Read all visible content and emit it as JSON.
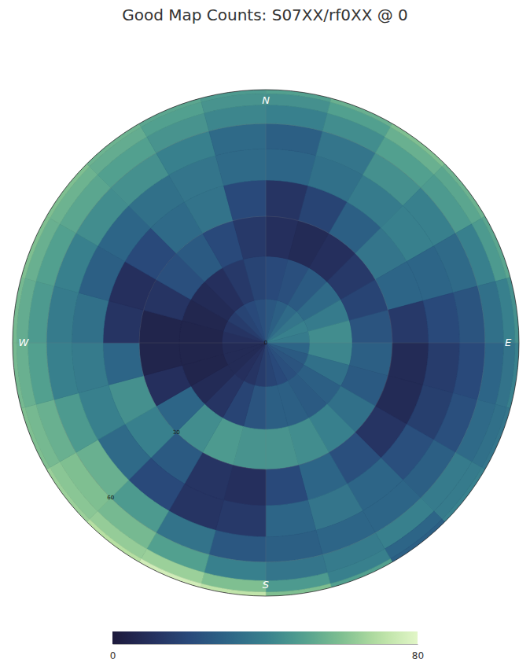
{
  "chart_data": {
    "type": "heatmap",
    "title": "Good Map Counts: S07XX/rf0XX @ 0",
    "zenith_bins": [
      0,
      10,
      20,
      30,
      40,
      50,
      60,
      70,
      80,
      90
    ],
    "azimuth_bins": [
      0,
      15,
      30,
      45,
      60,
      75,
      90,
      105,
      120,
      135,
      150,
      165,
      180,
      195,
      210,
      225,
      240,
      255,
      270,
      285,
      300,
      315,
      330,
      345,
      360
    ],
    "values": [
      [
        25,
        28,
        32,
        36,
        40,
        38,
        30,
        26,
        24,
        22,
        20,
        18,
        15,
        12,
        10,
        8,
        8,
        8,
        10,
        12,
        15,
        18,
        20,
        22
      ],
      [
        20,
        22,
        26,
        32,
        38,
        44,
        42,
        34,
        28,
        26,
        28,
        28,
        24,
        18,
        12,
        8,
        5,
        5,
        5,
        6,
        8,
        10,
        14,
        18
      ],
      [
        10,
        8,
        10,
        14,
        18,
        24,
        28,
        26,
        34,
        40,
        44,
        46,
        46,
        48,
        44,
        30,
        10,
        5,
        5,
        12,
        22,
        26,
        20,
        14
      ],
      [
        12,
        18,
        28,
        36,
        30,
        14,
        8,
        8,
        12,
        22,
        30,
        20,
        10,
        12,
        26,
        40,
        45,
        30,
        12,
        10,
        20,
        32,
        35,
        20
      ],
      [
        30,
        34,
        38,
        40,
        30,
        20,
        15,
        16,
        22,
        30,
        36,
        30,
        14,
        12,
        20,
        32,
        40,
        38,
        34,
        28,
        30,
        34,
        36,
        32
      ],
      [
        28,
        36,
        45,
        40,
        32,
        24,
        20,
        22,
        28,
        30,
        30,
        28,
        25,
        35,
        48,
        55,
        48,
        40,
        38,
        40,
        44,
        45,
        40,
        32
      ],
      [
        40,
        44,
        50,
        48,
        40,
        34,
        30,
        32,
        38,
        40,
        38,
        36,
        40,
        50,
        58,
        60,
        55,
        50,
        48,
        50,
        52,
        50,
        46,
        42
      ],
      [
        45,
        50,
        55,
        52,
        48,
        40,
        35,
        34,
        38,
        30,
        40,
        48,
        60,
        65,
        64,
        62,
        58,
        55,
        54,
        55,
        56,
        54,
        50,
        46
      ],
      [
        50,
        55,
        60,
        56,
        52,
        45,
        40,
        36,
        40,
        28,
        50,
        60,
        72,
        76,
        70,
        65,
        60,
        58,
        58,
        60,
        60,
        56,
        52,
        48
      ]
    ],
    "ring_ticks": [
      0,
      30,
      60
    ],
    "compass": [
      {
        "value": 0,
        "label": "N"
      },
      {
        "value": 90,
        "label": "E"
      },
      {
        "value": 180,
        "label": "S"
      },
      {
        "value": 270,
        "label": "W"
      }
    ],
    "colorbar": {
      "range": [
        0,
        80
      ],
      "ticks": [
        0,
        80
      ]
    }
  }
}
